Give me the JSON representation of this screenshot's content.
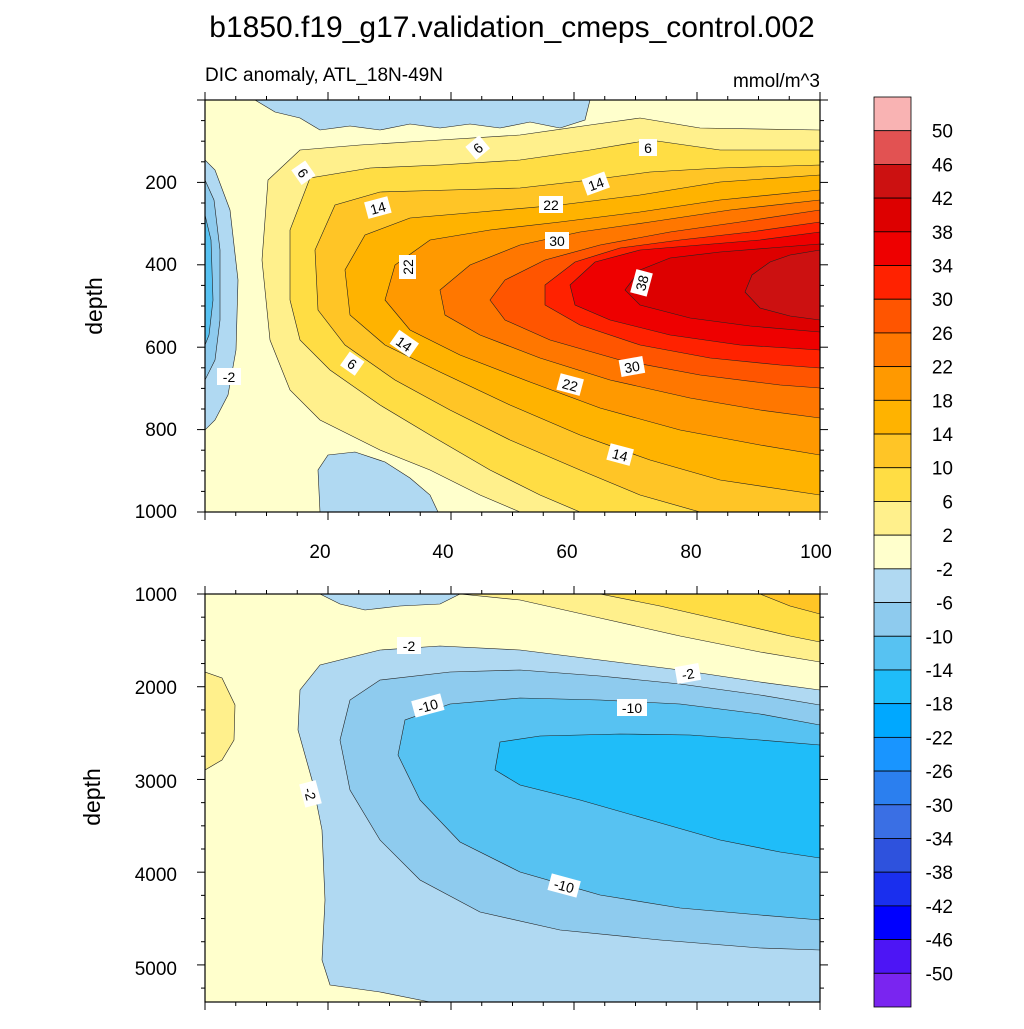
{
  "title": "b1850.f19_g17.validation_cmeps_control.002",
  "subtitle_left": "DIC anomaly, ATL_18N-49N",
  "subtitle_right": "mmol/m^3",
  "chart_data": [
    {
      "type": "heatmap",
      "panel": "upper",
      "ylabel": "depth",
      "xlim": [
        0,
        100
      ],
      "ylim": [
        1000,
        0
      ],
      "xticks": [
        "20",
        "40",
        "60",
        "80",
        "100"
      ],
      "yticks": [
        "200",
        "400",
        "600",
        "800",
        "1000"
      ],
      "contour_labels": [
        "6",
        "6",
        "14",
        "14",
        "22",
        "22",
        "30",
        "38",
        "14",
        "6",
        "-2",
        "22",
        "30",
        "14",
        "6"
      ],
      "description_fields": {
        "max_region": "x 60-100, depth 350-600",
        "max_value": 42,
        "min_value": -14
      }
    },
    {
      "type": "heatmap",
      "panel": "lower",
      "ylabel": "depth",
      "xlim": [
        0,
        100
      ],
      "ylim": [
        1000,
        5400
      ],
      "yticks": [
        "1000",
        "2000",
        "3000",
        "4000",
        "5000"
      ],
      "contour_labels": [
        "-2",
        "-2",
        "-10",
        "-10",
        "-2",
        "-10"
      ],
      "description_fields": {
        "min_region": "x 50-100, depth 2500-3800",
        "min_value": -18,
        "max_value": 14
      }
    }
  ],
  "colorbar": {
    "labels": [
      "50",
      "46",
      "42",
      "38",
      "34",
      "30",
      "26",
      "22",
      "18",
      "14",
      "10",
      "6",
      "2",
      "-2",
      "-6",
      "-10",
      "-14",
      "-18",
      "-22",
      "-26",
      "-30",
      "-34",
      "-38",
      "-42",
      "-46",
      "-50"
    ],
    "colors": [
      "#f9b3b3",
      "#e25252",
      "#cc1111",
      "#dd0000",
      "#ee0000",
      "#ff2200",
      "#ff5500",
      "#ff7700",
      "#ff9900",
      "#ffb300",
      "#ffc526",
      "#ffdd44",
      "#fff08c",
      "#ffffcc",
      "#b0d9f2",
      "#8ecbee",
      "#57c2f2",
      "#1fbdf9",
      "#00a8ff",
      "#1995ff",
      "#2b7fef",
      "#3a6fe4",
      "#2e52dd",
      "#1a2fee",
      "#0000ff",
      "#4d15f5",
      "#7a25f0"
    ]
  }
}
